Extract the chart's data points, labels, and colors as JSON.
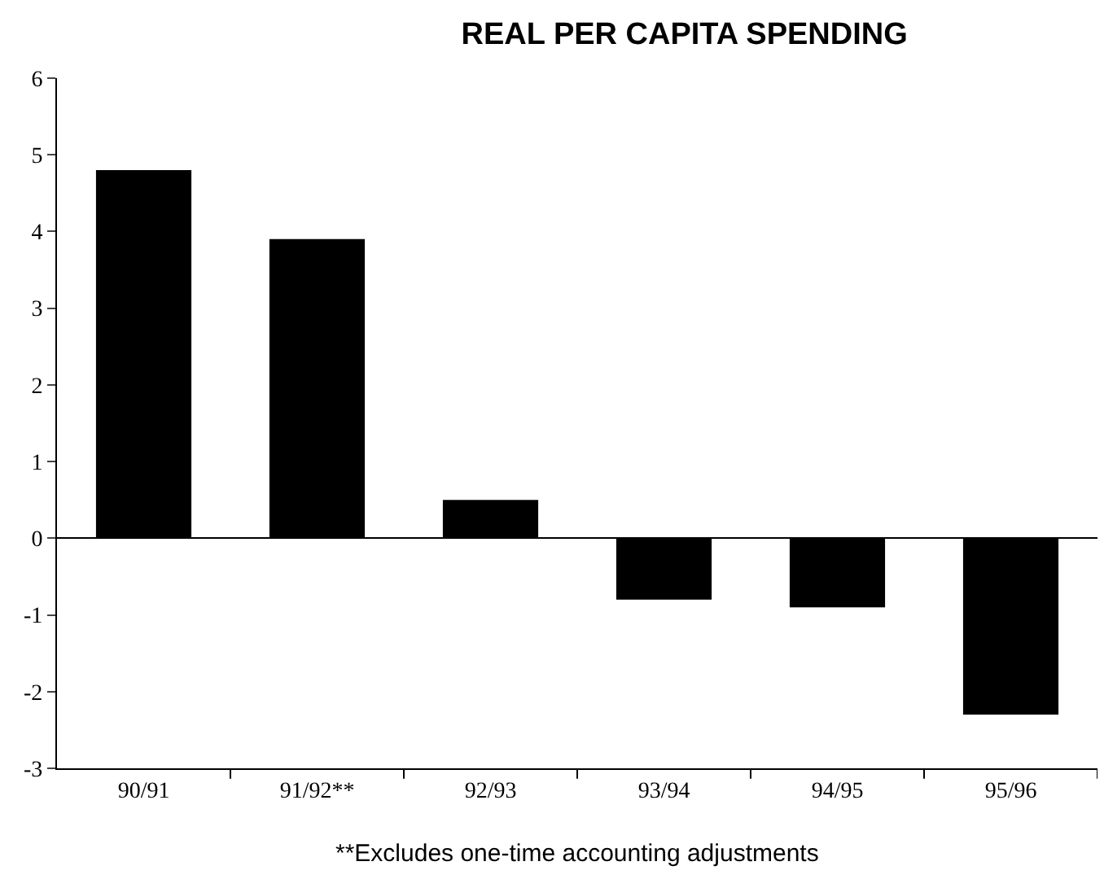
{
  "chart_data": {
    "type": "bar",
    "title": "REAL PER CAPITA SPENDING",
    "categories": [
      "90/91",
      "91/92**",
      "92/93",
      "93/94",
      "94/95",
      "95/96"
    ],
    "values": [
      4.8,
      3.9,
      0.5,
      -0.8,
      -0.9,
      -2.3
    ],
    "color": "#000000",
    "ylim": [
      -3,
      6
    ],
    "yticks": [
      -3,
      -2,
      -1,
      0,
      1,
      2,
      3,
      4,
      5,
      6
    ],
    "annotations": [
      "**Excludes one-time accounting adjustments"
    ]
  }
}
